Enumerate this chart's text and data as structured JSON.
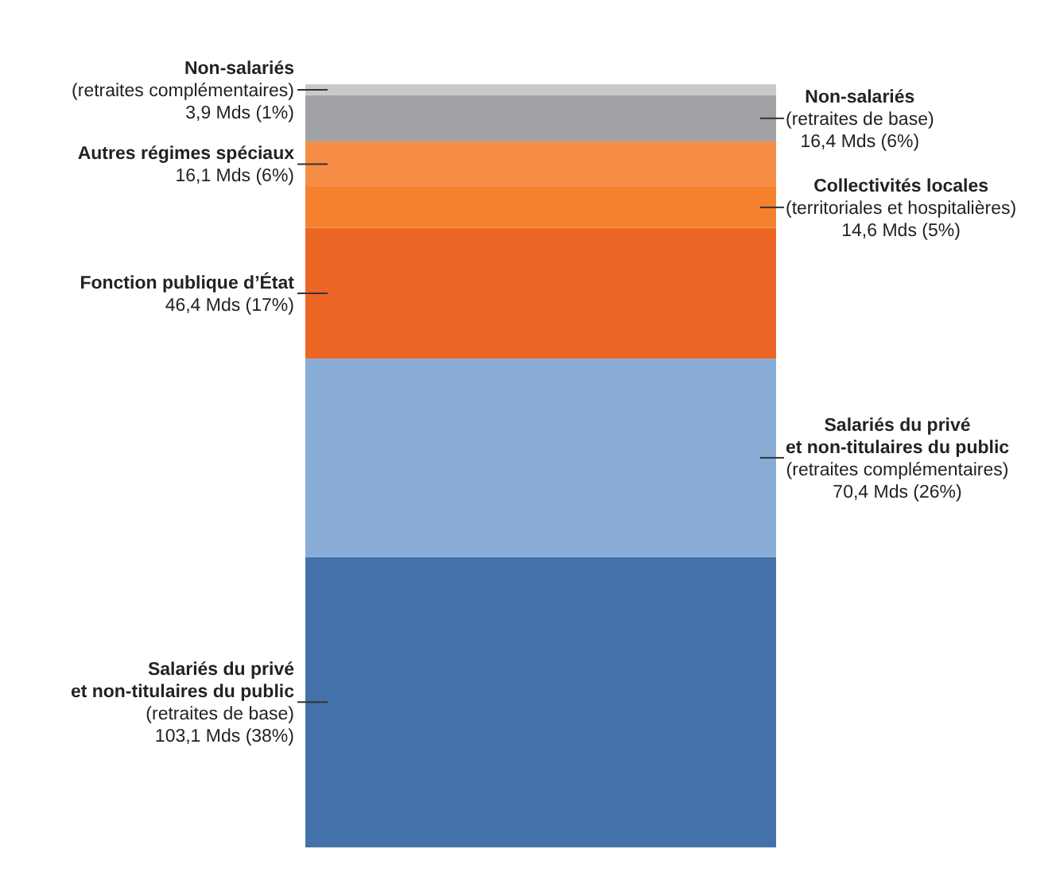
{
  "chart_data": {
    "type": "bar",
    "stacked": true,
    "categories": [
      null
    ],
    "series": [
      {
        "name": "Salariés du privé\net non-titulaires du public",
        "color": "#4371a9",
        "values": [
          103.1
        ],
        "value_labels": [
          "(retraites de base)\n103,1 Mds (38%)"
        ]
      },
      {
        "name": "Salariés du privé\net non-titulaires du public",
        "color": "#88acd6",
        "values": [
          70.4
        ],
        "value_labels": [
          "(retraites complémentaires)\n70,4 Mds (26%)"
        ]
      },
      {
        "name": "Fonction publique d’État",
        "color": "#ec6625",
        "values": [
          46.4
        ],
        "value_labels": [
          "46,4 Mds (17%)"
        ]
      },
      {
        "name": "Collectivités locales",
        "color": "#f5812f",
        "values": [
          14.6
        ],
        "value_labels": [
          "(territoriales et hospitalières)\n14,6 Mds (5%)"
        ]
      },
      {
        "name": "Autres régimes spéciaux",
        "color": "#f68d47",
        "values": [
          16.1
        ],
        "value_labels": [
          "16,1 Mds (6%)"
        ]
      },
      {
        "name": "Non-salariés",
        "color": "#a1a2a5",
        "values": [
          16.4
        ],
        "value_labels": [
          "(retraites de base)\n16,4 Mds (6%)"
        ]
      },
      {
        "name": "Non-salariés",
        "color": "#c8c9cb",
        "values": [
          3.9
        ],
        "value_labels": [
          "(retraites complémentaires)\n3,9 Mds (1%)"
        ]
      }
    ]
  }
}
